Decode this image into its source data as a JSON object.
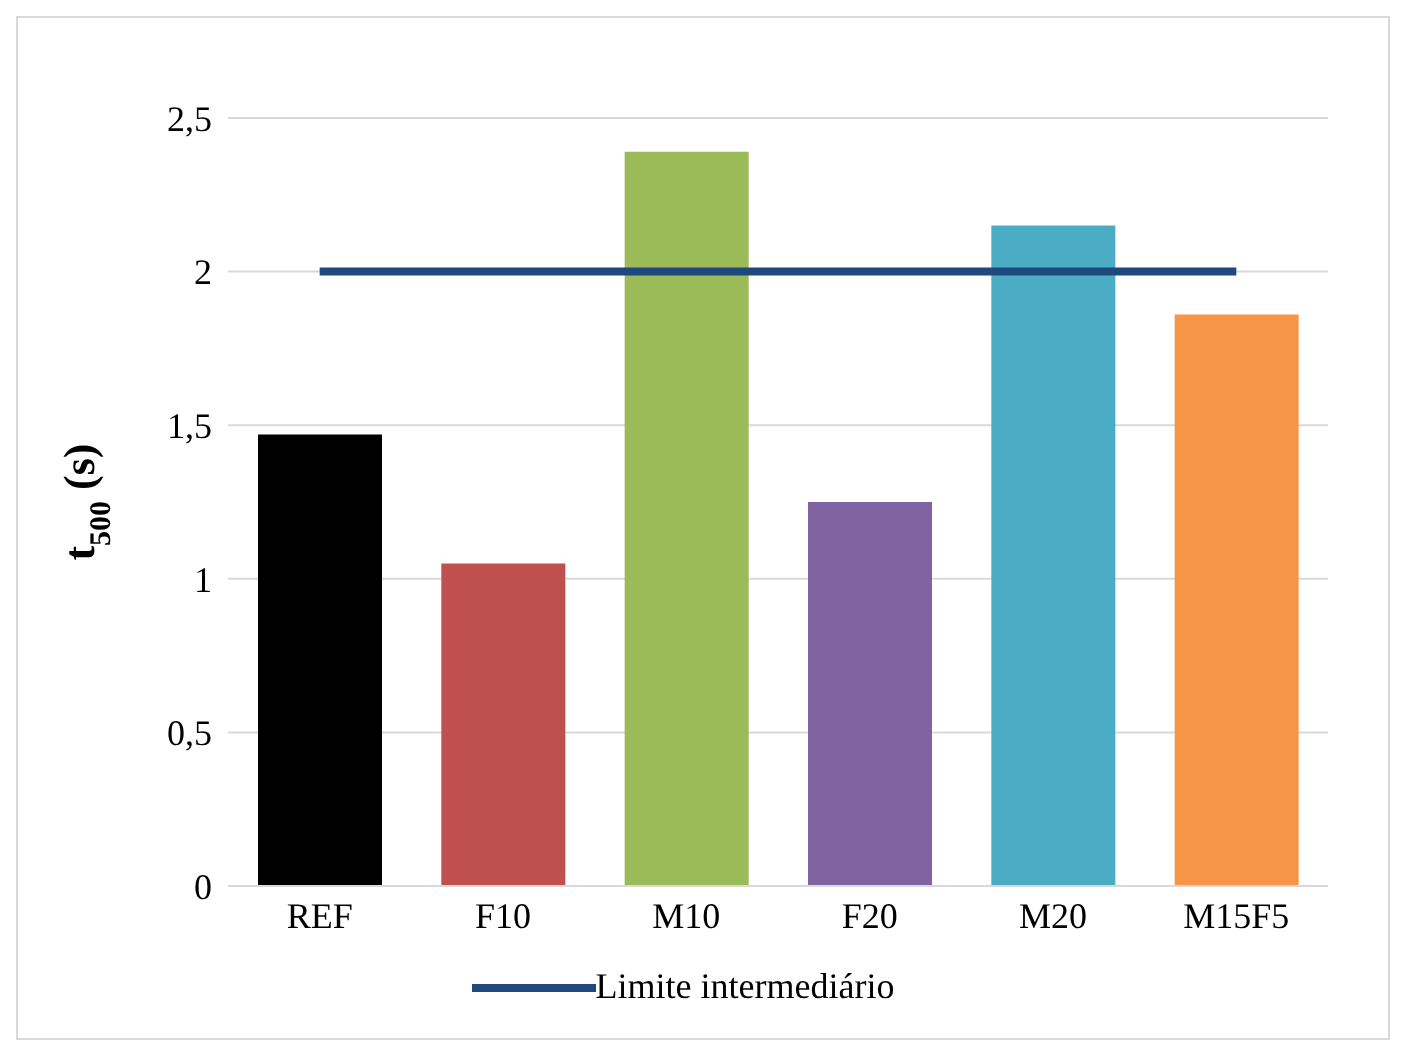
{
  "chart_data": {
    "type": "bar",
    "ylabel": "t$_{500}$ (s)",
    "categories": [
      "REF",
      "F10",
      "M10",
      "F20",
      "M20",
      "M15F5"
    ],
    "series": [
      {
        "colors": [
          "#000000",
          "#c0504d",
          "#9bbb59",
          "#8064a2",
          "#4bacc6",
          "#f79646"
        ],
        "values": [
          1.47,
          1.05,
          2.39,
          1.25,
          2.15,
          1.86
        ]
      },
      {
        "type": "line",
        "name": "Limite intermediário",
        "color": "#1f497d",
        "values": [
          2,
          2,
          2,
          2,
          2,
          2
        ]
      }
    ],
    "ylim": [
      0,
      2.5
    ],
    "yticks": [
      0,
      {
        "value": 0.5,
        "label": "0,5"
      },
      1,
      {
        "value": 1.5,
        "label": "1,5"
      },
      2,
      {
        "value": 2.5,
        "label": "2,5"
      }
    ],
    "grid": "y",
    "legend": "bottom",
    "marker": "none"
  }
}
